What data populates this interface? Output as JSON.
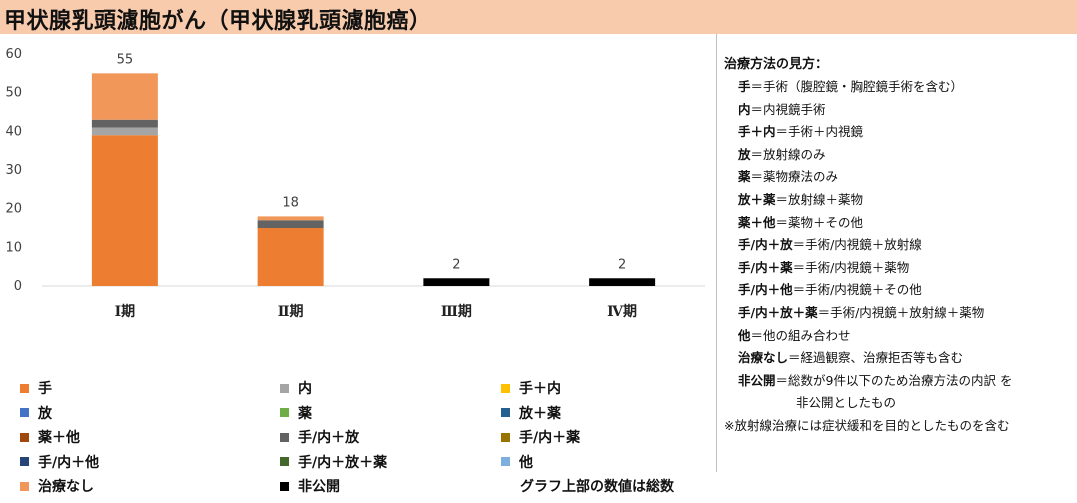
{
  "title": "甲状腺乳頭濾胞がん（甲状腺乳頭濾胞癌）",
  "chart_data": {
    "type": "bar",
    "stacked": true,
    "categories": [
      "Ⅰ期",
      "Ⅱ期",
      "Ⅲ期",
      "Ⅳ期"
    ],
    "ylim": [
      0,
      60
    ],
    "yticks": [
      0,
      10,
      20,
      30,
      40,
      50,
      60
    ],
    "grid": false,
    "totals": [
      55,
      18,
      2,
      2
    ],
    "series": [
      {
        "name": "手",
        "color": "#ed7d31",
        "values": [
          39,
          15,
          0,
          0
        ]
      },
      {
        "name": "内",
        "color": "#a5a5a5",
        "values": [
          2,
          0,
          0,
          0
        ]
      },
      {
        "name": "手＋内",
        "color": "#ffc000",
        "values": [
          0,
          0,
          0,
          0
        ]
      },
      {
        "name": "放",
        "color": "#4472c4",
        "values": [
          0,
          0,
          0,
          0
        ]
      },
      {
        "name": "薬",
        "color": "#70ad47",
        "values": [
          0,
          0,
          0,
          0
        ]
      },
      {
        "name": "放＋薬",
        "color": "#255e91",
        "values": [
          0,
          0,
          0,
          0
        ]
      },
      {
        "name": "薬＋他",
        "color": "#9e480e",
        "values": [
          0,
          0,
          0,
          0
        ]
      },
      {
        "name": "手/内＋放",
        "color": "#636363",
        "values": [
          2,
          2,
          0,
          0
        ]
      },
      {
        "name": "手/内＋薬",
        "color": "#997300",
        "values": [
          0,
          0,
          0,
          0
        ]
      },
      {
        "name": "手/内＋他",
        "color": "#264478",
        "values": [
          0,
          0,
          0,
          0
        ]
      },
      {
        "name": "手/内＋放＋薬",
        "color": "#43682b",
        "values": [
          0,
          0,
          0,
          0
        ]
      },
      {
        "name": "他",
        "color": "#7cafdd",
        "values": [
          0,
          0,
          0,
          0
        ]
      },
      {
        "name": "治療なし",
        "color": "#f1975a",
        "values": [
          12,
          1,
          0,
          0
        ]
      },
      {
        "name": "非公開",
        "color": "#000000",
        "values": [
          0,
          0,
          2,
          2
        ]
      }
    ],
    "legend_note": "グラフ上部の数値は総数"
  },
  "explanation": {
    "heading": "治療方法の見方：",
    "rows": [
      {
        "key": "手",
        "text": "＝手術（腹腔鏡・胸腔鏡手術を含む）"
      },
      {
        "key": "内",
        "text": "＝内視鏡手術"
      },
      {
        "key": "手＋内",
        "text": "＝手術＋内視鏡"
      },
      {
        "key": "放",
        "text": "＝放射線のみ"
      },
      {
        "key": "薬",
        "text": "＝薬物療法のみ"
      },
      {
        "key": "放＋薬",
        "text": "＝放射線＋薬物"
      },
      {
        "key": "薬＋他",
        "text": "＝薬物＋その他"
      },
      {
        "key": "手/内＋放",
        "text": "＝手術/内視鏡＋放射線"
      },
      {
        "key": "手/内＋薬",
        "text": "＝手術/内視鏡＋薬物"
      },
      {
        "key": "手/内＋他",
        "text": "＝手術/内視鏡＋その他"
      },
      {
        "key": "手/内＋放＋薬",
        "text": "＝手術/内視鏡＋放射線＋薬物"
      },
      {
        "key": "他",
        "text": "＝他の組み合わせ"
      },
      {
        "key": "治療なし",
        "text": "＝経過観察、治療拒否等も含む"
      },
      {
        "key": "非公開",
        "text": "＝総数が9件以下のため治療方法の内訳 を"
      }
    ],
    "continuation": "非公開としたもの",
    "footnote": "※放射線治療には症状緩和を目的としたものを含む"
  }
}
